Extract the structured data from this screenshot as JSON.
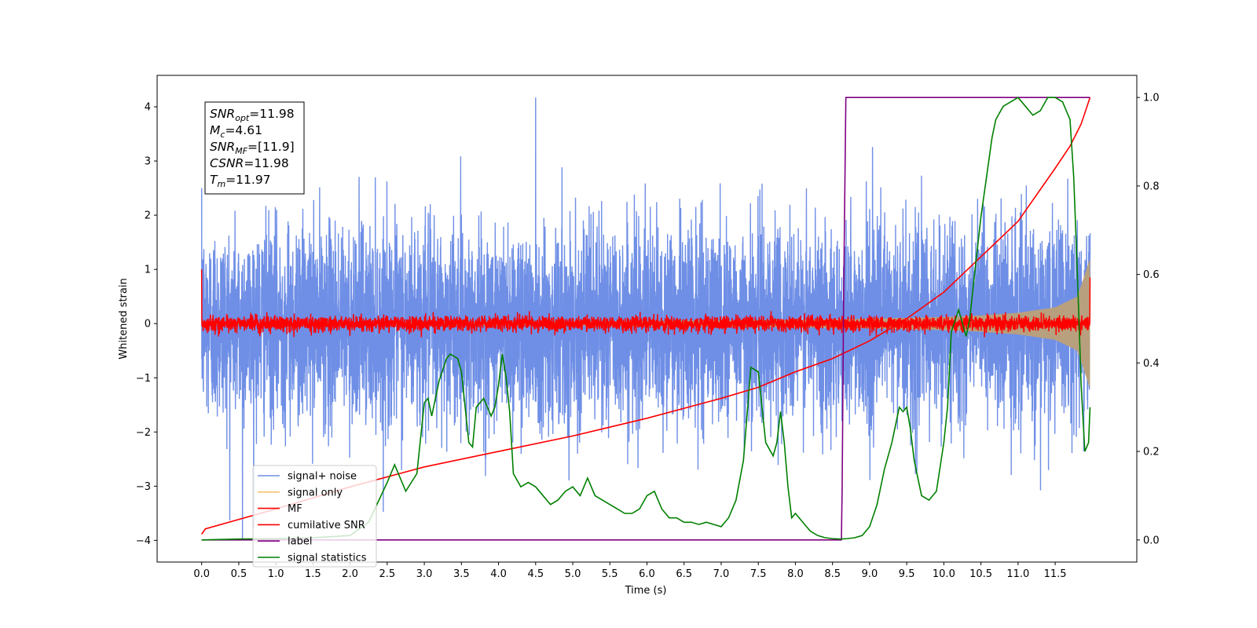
{
  "chart_data": {
    "type": "line",
    "xlabel": "Time (s)",
    "ylabel": "Whitened strain",
    "xlim": [
      -0.6,
      12.6
    ],
    "ylim": [
      -4.4,
      4.58
    ],
    "y2lim": [
      -0.05,
      1.05
    ],
    "xticks": [
      0.0,
      0.5,
      1.0,
      1.5,
      2.0,
      2.5,
      3.0,
      3.5,
      4.0,
      4.5,
      5.0,
      5.5,
      6.0,
      6.5,
      7.0,
      7.5,
      8.0,
      8.5,
      9.0,
      9.5,
      10.0,
      10.5,
      11.0,
      11.5
    ],
    "xtick_labels": [
      "0.0",
      "0.5",
      "1.0",
      "1.5",
      "2.0",
      "2.5",
      "3.0",
      "3.5",
      "4.0",
      "4.5",
      "5.0",
      "5.5",
      "6.0",
      "6.5",
      "7.0",
      "7.5",
      "8.0",
      "8.5",
      "9.0",
      "9.5",
      "10.0",
      "10.5",
      "11.0",
      "11.5"
    ],
    "yticks": [
      -4,
      -3,
      -2,
      -1,
      0,
      1,
      2,
      3,
      4
    ],
    "ytick_labels": [
      "−4",
      "−3",
      "−2",
      "−1",
      "0",
      "1",
      "2",
      "3",
      "4"
    ],
    "y2ticks": [
      0.0,
      0.2,
      0.4,
      0.6,
      0.8,
      1.0
    ],
    "y2tick_labels": [
      "0.0",
      "0.2",
      "0.4",
      "0.6",
      "0.8",
      "1.0"
    ],
    "legend_position": "lower-left",
    "grid": false,
    "annotation": [
      {
        "base": "SNR",
        "sub": "opt",
        "value": "=11.98"
      },
      {
        "base": "M",
        "sub": "c",
        "value": "=4.61"
      },
      {
        "base": "SNR",
        "sub": "MF",
        "value": "=[11.9]"
      },
      {
        "base": "CSNR",
        "sub": "",
        "value": "=11.98"
      },
      {
        "base": "T",
        "sub": "m",
        "value": "=11.97"
      }
    ],
    "series": [
      {
        "name": "signal+ noise",
        "axis": "left",
        "color": "#6f8fe6",
        "kind": "noise",
        "sample_rate_hz": 512,
        "noise_std": 0.9,
        "t_start": 0.0,
        "t_end": 11.97,
        "observed_max": 4.17,
        "observed_min": -4.0
      },
      {
        "name": "signal only",
        "axis": "left",
        "color": "#f5c26b",
        "kind": "chirp",
        "fill_color": "#b8a07e",
        "envelope": {
          "t": [
            0.0,
            5.0,
            8.0,
            9.0,
            10.0,
            10.5,
            11.0,
            11.5,
            11.8,
            11.97
          ],
          "amp": [
            0.02,
            0.04,
            0.07,
            0.09,
            0.12,
            0.15,
            0.2,
            0.3,
            0.5,
            1.2
          ]
        }
      },
      {
        "name": "MF",
        "axis": "left",
        "color": "#ff0000",
        "kind": "mf",
        "t_start": 0.0,
        "t_end": 11.97,
        "start_value": 1.0,
        "noise_std": 0.07,
        "end_value": 0.85
      },
      {
        "name": "cumilative SNR",
        "axis": "right",
        "color": "#ff0000",
        "kind": "line",
        "x": [
          0.0,
          0.05,
          1.0,
          2.0,
          3.0,
          4.0,
          5.0,
          6.0,
          7.0,
          7.5,
          8.0,
          8.5,
          9.0,
          9.5,
          10.0,
          10.5,
          11.0,
          11.5,
          11.7,
          11.85,
          11.97
        ],
        "y": [
          0.013,
          0.025,
          0.07,
          0.12,
          0.165,
          0.2,
          0.235,
          0.275,
          0.32,
          0.345,
          0.38,
          0.41,
          0.45,
          0.5,
          0.56,
          0.64,
          0.72,
          0.84,
          0.89,
          0.94,
          1.0
        ]
      },
      {
        "name": "label",
        "axis": "right",
        "color": "#800080",
        "kind": "line",
        "x": [
          0.0,
          8.62,
          8.63,
          8.65,
          8.68,
          11.97
        ],
        "y": [
          0.0,
          0.0,
          0.12,
          0.55,
          1.0,
          1.0
        ]
      },
      {
        "name": "signal statistics",
        "axis": "right",
        "color": "#008000",
        "kind": "line",
        "x": [
          0.0,
          0.5,
          1.0,
          1.5,
          2.0,
          2.25,
          2.5,
          2.6,
          2.75,
          2.9,
          3.0,
          3.05,
          3.1,
          3.2,
          3.3,
          3.35,
          3.45,
          3.5,
          3.6,
          3.65,
          3.7,
          3.8,
          3.9,
          3.95,
          4.0,
          4.05,
          4.1,
          4.15,
          4.2,
          4.3,
          4.4,
          4.5,
          4.6,
          4.7,
          4.8,
          4.9,
          5.0,
          5.1,
          5.2,
          5.3,
          5.4,
          5.5,
          5.6,
          5.7,
          5.8,
          5.9,
          6.0,
          6.1,
          6.2,
          6.3,
          6.4,
          6.5,
          6.6,
          6.7,
          6.8,
          6.9,
          7.0,
          7.1,
          7.2,
          7.3,
          7.4,
          7.5,
          7.55,
          7.6,
          7.7,
          7.75,
          7.8,
          7.85,
          7.9,
          7.95,
          8.0,
          8.1,
          8.2,
          8.3,
          8.4,
          8.5,
          8.6,
          8.7,
          8.8,
          8.9,
          9.0,
          9.1,
          9.2,
          9.3,
          9.4,
          9.45,
          9.5,
          9.55,
          9.6,
          9.65,
          9.7,
          9.8,
          9.9,
          10.0,
          10.05,
          10.1,
          10.2,
          10.3,
          10.35,
          10.4,
          10.5,
          10.6,
          10.65,
          10.7,
          10.8,
          10.9,
          11.0,
          11.1,
          11.2,
          11.3,
          11.4,
          11.5,
          11.6,
          11.7,
          11.75,
          11.8,
          11.85,
          11.9,
          11.95,
          11.97
        ],
        "y": [
          0.0,
          0.002,
          0.003,
          0.005,
          0.01,
          0.04,
          0.13,
          0.17,
          0.11,
          0.15,
          0.31,
          0.32,
          0.28,
          0.36,
          0.41,
          0.42,
          0.41,
          0.38,
          0.22,
          0.21,
          0.3,
          0.32,
          0.28,
          0.3,
          0.35,
          0.42,
          0.37,
          0.29,
          0.15,
          0.12,
          0.13,
          0.12,
          0.1,
          0.08,
          0.09,
          0.11,
          0.12,
          0.1,
          0.14,
          0.1,
          0.09,
          0.08,
          0.07,
          0.06,
          0.06,
          0.07,
          0.1,
          0.11,
          0.07,
          0.05,
          0.05,
          0.04,
          0.04,
          0.035,
          0.04,
          0.035,
          0.03,
          0.05,
          0.09,
          0.18,
          0.39,
          0.38,
          0.3,
          0.22,
          0.19,
          0.22,
          0.29,
          0.22,
          0.12,
          0.05,
          0.06,
          0.04,
          0.02,
          0.01,
          0.005,
          0.003,
          0.002,
          0.003,
          0.005,
          0.01,
          0.03,
          0.08,
          0.16,
          0.22,
          0.3,
          0.29,
          0.3,
          0.25,
          0.18,
          0.14,
          0.1,
          0.09,
          0.11,
          0.22,
          0.3,
          0.47,
          0.52,
          0.46,
          0.5,
          0.58,
          0.73,
          0.85,
          0.91,
          0.95,
          0.98,
          0.99,
          1.0,
          0.98,
          0.96,
          0.97,
          1.0,
          1.0,
          0.99,
          0.95,
          0.82,
          0.6,
          0.35,
          0.2,
          0.22,
          0.3
        ]
      }
    ]
  }
}
